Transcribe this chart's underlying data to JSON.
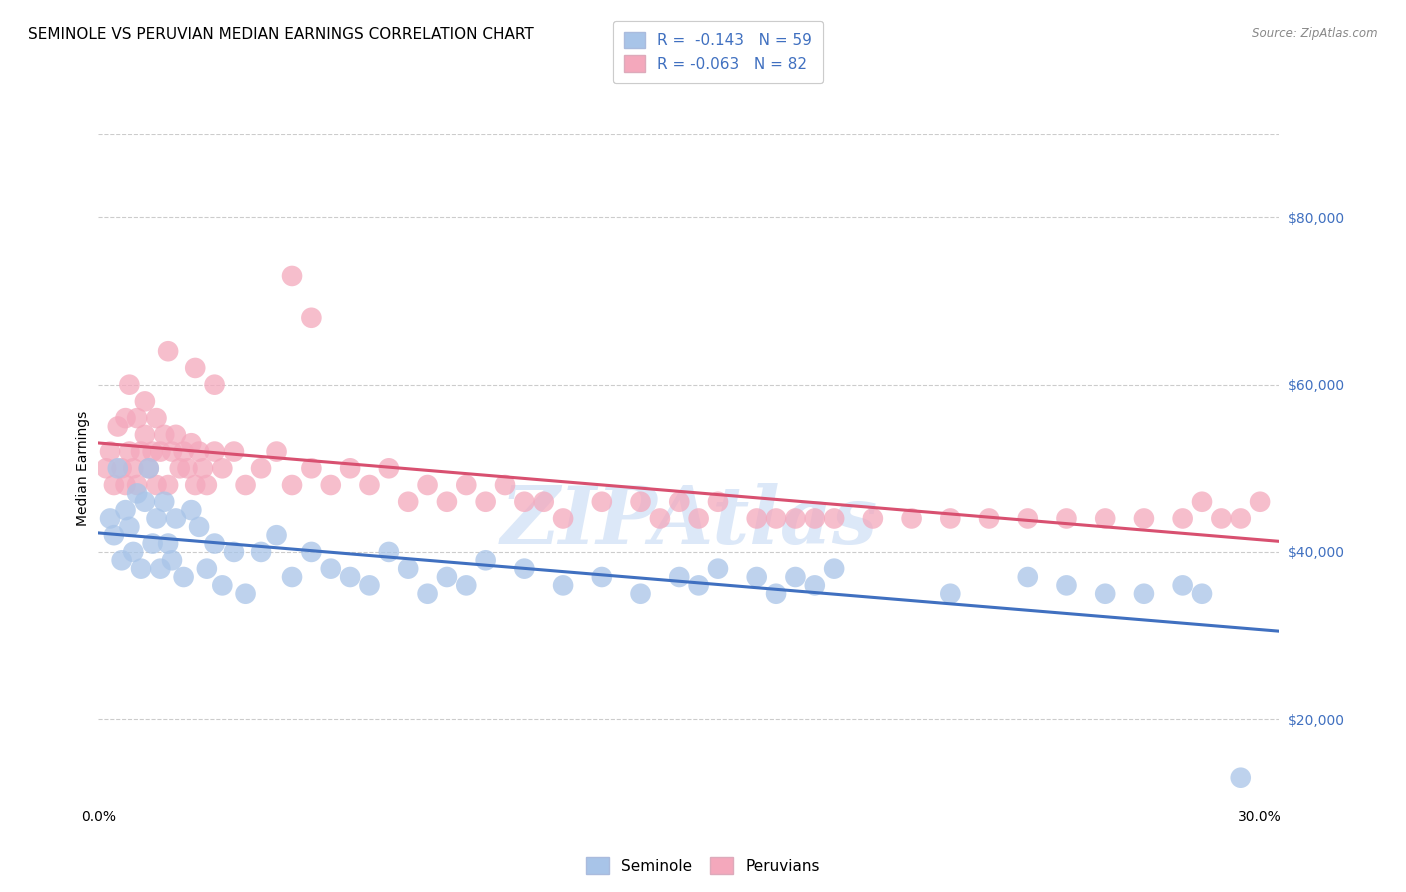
{
  "title": "SEMINOLE VS PERUVIAN MEDIAN EARNINGS CORRELATION CHART",
  "source": "Source: ZipAtlas.com",
  "xlabel_start": "0.0%",
  "xlabel_end": "30.0%",
  "ylabel": "Median Earnings",
  "yticks": [
    20000,
    40000,
    60000,
    80000
  ],
  "ytick_labels": [
    "$20,000",
    "$40,000",
    "$60,000",
    "$80,000"
  ],
  "xlim": [
    0.0,
    0.305
  ],
  "ylim": [
    10000,
    90000
  ],
  "seminole_R": "-0.143",
  "seminole_N": "59",
  "peruvian_R": "-0.063",
  "peruvian_N": "82",
  "seminole_color": "#a8c4e8",
  "peruvian_color": "#f4a8bc",
  "seminole_line_color": "#4070c0",
  "peruvian_line_color": "#d85070",
  "background_color": "#ffffff",
  "grid_color": "#cccccc",
  "watermark": "ZIPAtlas",
  "watermark_color": "#dce8f8",
  "title_fontsize": 11,
  "axis_label_fontsize": 10,
  "tick_fontsize": 10,
  "legend_fontsize": 11,
  "seminole_x": [
    0.003,
    0.004,
    0.005,
    0.006,
    0.007,
    0.008,
    0.009,
    0.01,
    0.011,
    0.012,
    0.013,
    0.014,
    0.015,
    0.016,
    0.017,
    0.018,
    0.019,
    0.02,
    0.022,
    0.024,
    0.026,
    0.028,
    0.03,
    0.032,
    0.035,
    0.038,
    0.042,
    0.046,
    0.05,
    0.055,
    0.06,
    0.065,
    0.07,
    0.075,
    0.08,
    0.085,
    0.09,
    0.095,
    0.1,
    0.11,
    0.12,
    0.13,
    0.14,
    0.15,
    0.155,
    0.16,
    0.17,
    0.175,
    0.18,
    0.185,
    0.19,
    0.22,
    0.24,
    0.25,
    0.26,
    0.27,
    0.28,
    0.285,
    0.295
  ],
  "seminole_y": [
    44000,
    42000,
    50000,
    39000,
    45000,
    43000,
    40000,
    47000,
    38000,
    46000,
    50000,
    41000,
    44000,
    38000,
    46000,
    41000,
    39000,
    44000,
    37000,
    45000,
    43000,
    38000,
    41000,
    36000,
    40000,
    35000,
    40000,
    42000,
    37000,
    40000,
    38000,
    37000,
    36000,
    40000,
    38000,
    35000,
    37000,
    36000,
    39000,
    38000,
    36000,
    37000,
    35000,
    37000,
    36000,
    38000,
    37000,
    35000,
    37000,
    36000,
    38000,
    35000,
    37000,
    36000,
    35000,
    35000,
    36000,
    35000,
    13000
  ],
  "peruvian_x": [
    0.002,
    0.003,
    0.004,
    0.005,
    0.006,
    0.007,
    0.007,
    0.008,
    0.009,
    0.01,
    0.01,
    0.011,
    0.012,
    0.013,
    0.014,
    0.015,
    0.015,
    0.016,
    0.017,
    0.018,
    0.019,
    0.02,
    0.021,
    0.022,
    0.023,
    0.024,
    0.025,
    0.026,
    0.027,
    0.028,
    0.03,
    0.032,
    0.035,
    0.038,
    0.042,
    0.046,
    0.05,
    0.055,
    0.06,
    0.065,
    0.07,
    0.075,
    0.08,
    0.085,
    0.09,
    0.095,
    0.1,
    0.105,
    0.11,
    0.115,
    0.12,
    0.13,
    0.14,
    0.145,
    0.15,
    0.155,
    0.16,
    0.17,
    0.175,
    0.18,
    0.185,
    0.19,
    0.2,
    0.21,
    0.22,
    0.23,
    0.24,
    0.25,
    0.26,
    0.27,
    0.28,
    0.285,
    0.29,
    0.295,
    0.3,
    0.05,
    0.055,
    0.03,
    0.025,
    0.018,
    0.012,
    0.008
  ],
  "peruvian_y": [
    50000,
    52000,
    48000,
    55000,
    50000,
    56000,
    48000,
    52000,
    50000,
    56000,
    48000,
    52000,
    54000,
    50000,
    52000,
    56000,
    48000,
    52000,
    54000,
    48000,
    52000,
    54000,
    50000,
    52000,
    50000,
    53000,
    48000,
    52000,
    50000,
    48000,
    52000,
    50000,
    52000,
    48000,
    50000,
    52000,
    48000,
    50000,
    48000,
    50000,
    48000,
    50000,
    46000,
    48000,
    46000,
    48000,
    46000,
    48000,
    46000,
    46000,
    44000,
    46000,
    46000,
    44000,
    46000,
    44000,
    46000,
    44000,
    44000,
    44000,
    44000,
    44000,
    44000,
    44000,
    44000,
    44000,
    44000,
    44000,
    44000,
    44000,
    44000,
    46000,
    44000,
    44000,
    46000,
    73000,
    68000,
    60000,
    62000,
    64000,
    58000,
    60000
  ]
}
